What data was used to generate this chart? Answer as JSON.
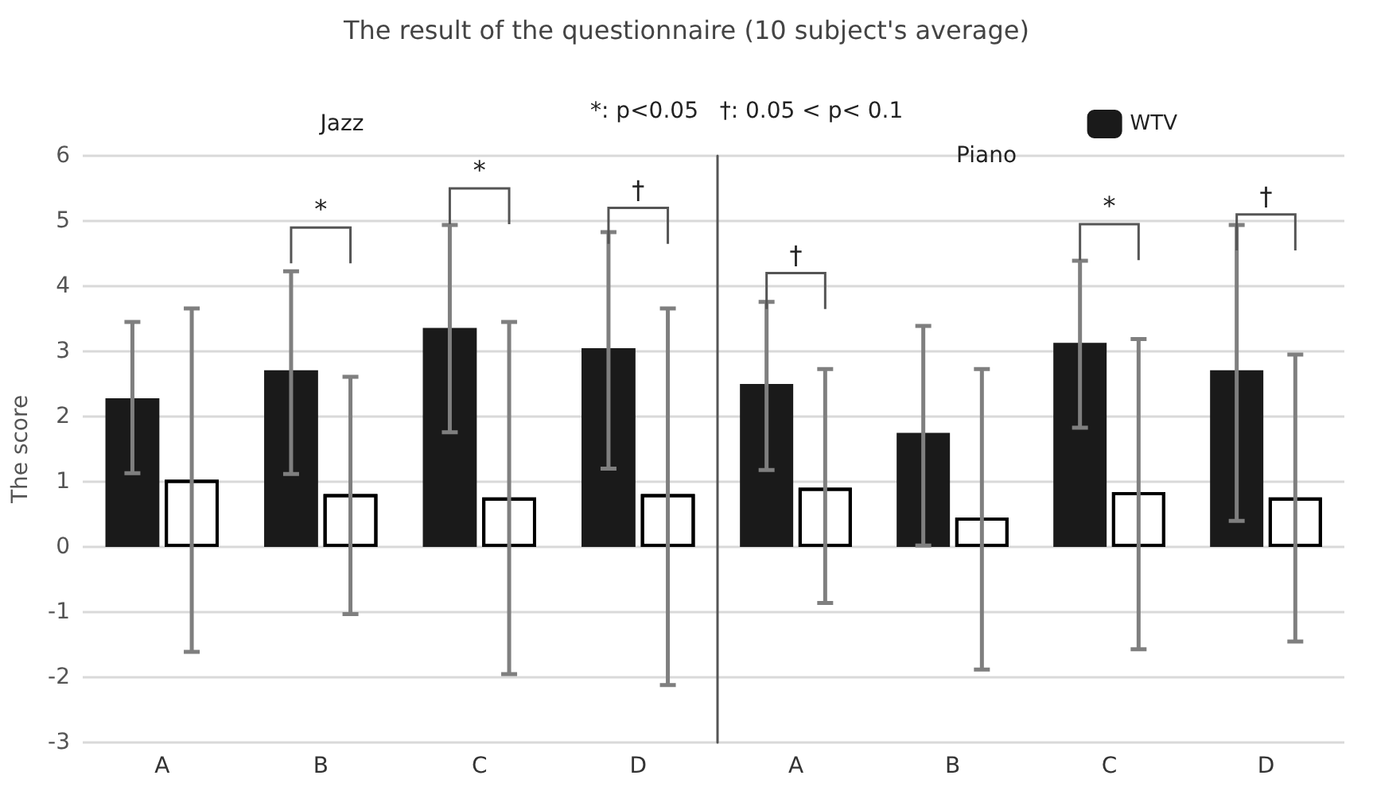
{
  "chart_data": [
    {
      "type": "bar",
      "title": "The result of the questionnaire (10 subject's average)",
      "ylabel": "The score",
      "categories": [
        "A",
        "B",
        "C",
        "D"
      ],
      "series": [
        {
          "color": "#1a1a1a",
          "values": [
            2.28,
            2.71,
            3.36,
            3.05
          ],
          "errors": [
            [
              1.13,
              3.45
            ],
            [
              1.12,
              4.23
            ],
            [
              1.76,
              4.94
            ],
            [
              1.2,
              4.83
            ]
          ]
        },
        {
          "color": "#ffffff",
          "values": [
            1.03,
            0.81,
            0.76,
            0.81
          ],
          "errors": [
            [
              -1.61,
              3.66
            ],
            [
              -1.03,
              2.61
            ],
            [
              -1.95,
              3.45
            ],
            [
              -2.12,
              3.66
            ]
          ]
        }
      ],
      "ylim": [
        -3,
        6
      ],
      "yticks": [
        -3,
        -2,
        -1,
        0,
        1,
        2,
        3,
        4,
        5,
        6
      ],
      "grid": "y",
      "annotations": [
        "Jazz",
        "*: p<0.05",
        "†: 0.05 < p< 0.1",
        "*",
        "*",
        "†"
      ]
    },
    {
      "type": "bar",
      "categories": [
        "A",
        "B",
        "C",
        "D"
      ],
      "series": [
        {
          "name": "WTV",
          "color": "#1a1a1a",
          "values": [
            2.5,
            1.75,
            3.13,
            2.71
          ],
          "errors": [
            [
              1.18,
              3.76
            ],
            [
              0.02,
              3.39
            ],
            [
              1.83,
              4.39
            ],
            [
              0.4,
              4.94
            ]
          ]
        },
        {
          "color": "#ffffff",
          "values": [
            0.91,
            0.45,
            0.84,
            0.76
          ],
          "errors": [
            [
              -0.86,
              2.73
            ],
            [
              -1.88,
              2.73
            ],
            [
              -1.57,
              3.19
            ],
            [
              -1.45,
              2.95
            ]
          ]
        }
      ],
      "ylim": [
        -3,
        6
      ],
      "yticks": [
        -3,
        -2,
        -1,
        0,
        1,
        2,
        3,
        4,
        5,
        6
      ],
      "grid": "y",
      "tick_labels": "x",
      "legend": "top right",
      "annotations": [
        "Piano",
        "†",
        "*",
        "†"
      ]
    }
  ]
}
